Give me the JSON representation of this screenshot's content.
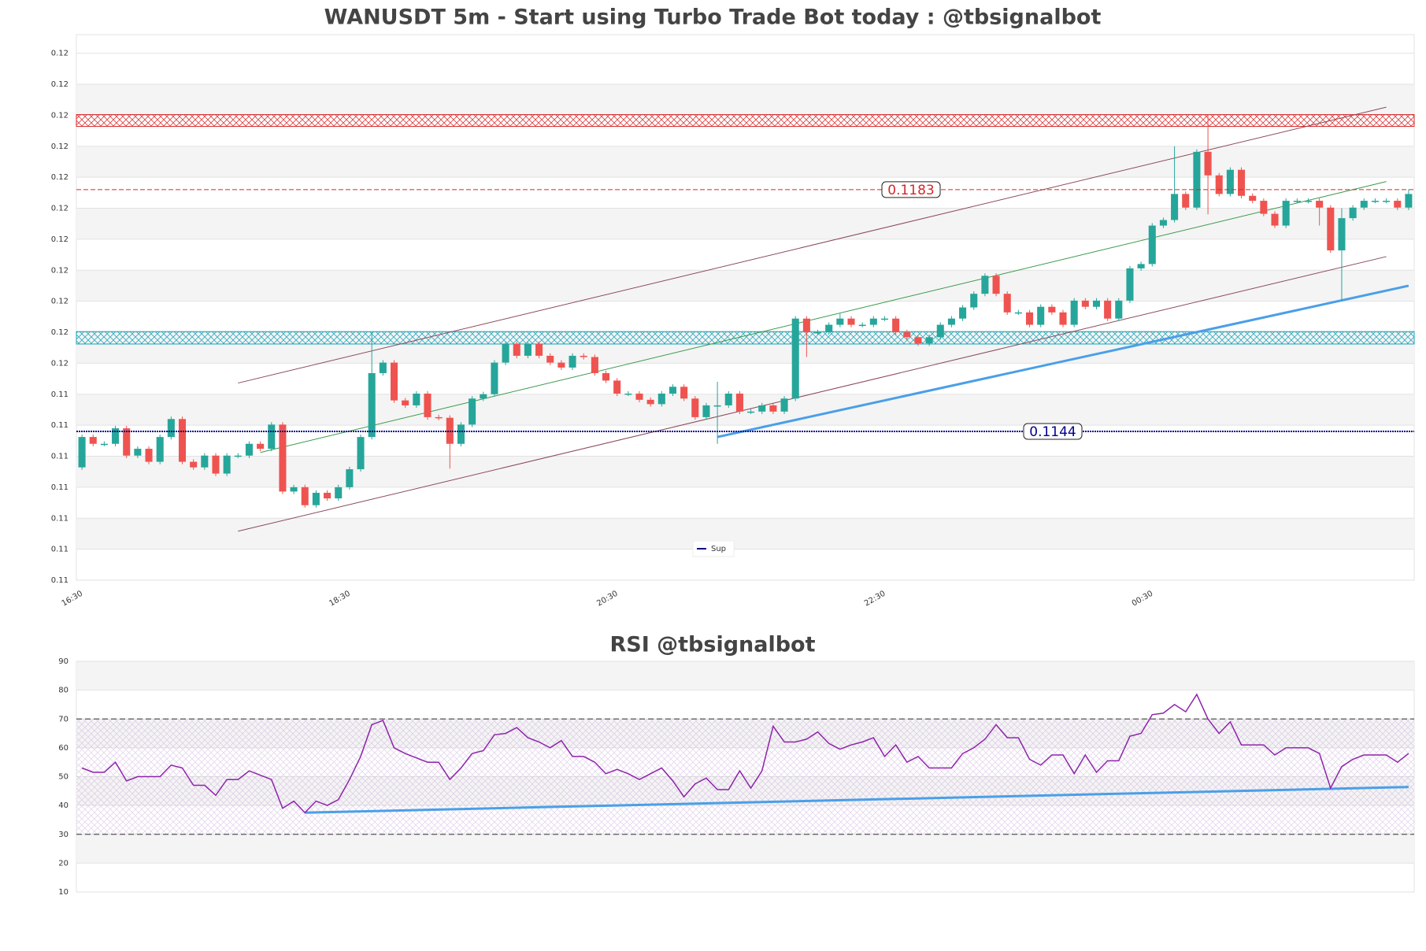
{
  "chart_data": [
    {
      "type": "candlestick",
      "title": "WANUSDT 5m - Start using Turbo Trade Bot today : @tbsignalbot",
      "categories": [
        "16:30",
        null,
        null,
        null,
        null,
        null,
        null,
        null,
        null,
        null,
        null,
        null,
        null,
        null,
        null,
        null,
        null,
        null,
        null,
        null,
        null,
        null,
        null,
        null,
        "18:30",
        null,
        null,
        null,
        null,
        null,
        null,
        null,
        null,
        null,
        null,
        null,
        null,
        null,
        null,
        null,
        null,
        null,
        null,
        null,
        null,
        null,
        null,
        null,
        "20:30",
        null,
        null,
        null,
        null,
        null,
        null,
        null,
        null,
        null,
        null,
        null,
        null,
        null,
        null,
        null,
        null,
        null,
        null,
        null,
        null,
        null,
        null,
        null,
        "22:30",
        null,
        null,
        null,
        null,
        null,
        null,
        null,
        null,
        null,
        null,
        null,
        null,
        null,
        null,
        null,
        null,
        null,
        null,
        null,
        null,
        null,
        null,
        null,
        "00:30",
        null,
        null,
        null,
        null,
        null,
        null,
        null,
        null,
        null,
        null,
        null,
        null,
        null,
        null,
        null,
        null,
        null,
        null,
        null,
        null,
        null,
        null,
        null
      ],
      "open": [
        0.11382,
        0.11431,
        0.1142,
        0.1142,
        0.11445,
        0.11401,
        0.11412,
        0.11391,
        0.11431,
        0.1146,
        0.11391,
        0.11382,
        0.11401,
        0.11372,
        0.11401,
        0.11401,
        0.1142,
        0.11412,
        0.11451,
        0.11343,
        0.1135,
        0.11321,
        0.11341,
        0.11332,
        0.1135,
        0.11379,
        0.11431,
        0.11534,
        0.11551,
        0.1149,
        0.11482,
        0.11501,
        0.11463,
        0.11462,
        0.1142,
        0.11451,
        0.11493,
        0.115,
        0.11551,
        0.11581,
        0.11562,
        0.11581,
        0.11562,
        0.11551,
        0.11543,
        0.11562,
        0.1156,
        0.11534,
        0.11522,
        0.11501,
        0.11501,
        0.11491,
        0.11484,
        0.11501,
        0.11512,
        0.11493,
        0.11463,
        0.11482,
        0.11482,
        0.11501,
        0.11472,
        0.11472,
        0.11482,
        0.11472,
        0.11493,
        0.11622,
        0.116,
        0.116,
        0.11612,
        0.11622,
        0.11612,
        0.11612,
        0.11622,
        0.11622,
        0.116,
        0.11592,
        0.11582,
        0.11592,
        0.11612,
        0.11622,
        0.1164,
        0.11662,
        0.11691,
        0.11662,
        0.11632,
        0.11632,
        0.11612,
        0.11641,
        0.11632,
        0.11612,
        0.11651,
        0.11641,
        0.11651,
        0.11622,
        0.11651,
        0.11703,
        0.1171,
        0.11772,
        0.11781,
        0.11823,
        0.11801,
        0.11891,
        0.11853,
        0.11823,
        0.11862,
        0.1182,
        0.11812,
        0.11791,
        0.11772,
        0.11812,
        0.11812,
        0.11812,
        0.11801,
        0.11732,
        0.11784,
        0.11801,
        0.11812,
        0.11812,
        0.11812,
        0.11801
      ],
      "high": [
        0.11435,
        0.11435,
        0.11424,
        0.11449,
        0.11449,
        0.11416,
        0.11416,
        0.11435,
        0.11464,
        0.11464,
        0.11395,
        0.11405,
        0.11405,
        0.11405,
        0.11405,
        0.11424,
        0.11424,
        0.11455,
        0.11455,
        0.11354,
        0.11354,
        0.11345,
        0.11345,
        0.11354,
        0.11383,
        0.11435,
        0.116,
        0.11555,
        0.11555,
        0.11494,
        0.11505,
        0.11505,
        0.11467,
        0.11466,
        0.11455,
        0.11497,
        0.11504,
        0.11555,
        0.11585,
        0.11585,
        0.11585,
        0.11585,
        0.11566,
        0.11555,
        0.11566,
        0.11566,
        0.11564,
        0.11538,
        0.11526,
        0.11505,
        0.11505,
        0.11495,
        0.11505,
        0.11516,
        0.11516,
        0.11497,
        0.11486,
        0.1152,
        0.11505,
        0.11505,
        0.11476,
        0.11486,
        0.11486,
        0.11497,
        0.11626,
        0.11626,
        0.11604,
        0.11616,
        0.1163,
        0.11626,
        0.11616,
        0.11626,
        0.11626,
        0.11626,
        0.11604,
        0.11596,
        0.11596,
        0.11616,
        0.11626,
        0.11644,
        0.11666,
        0.11695,
        0.11695,
        0.11666,
        0.11636,
        0.11636,
        0.11645,
        0.11645,
        0.11636,
        0.11655,
        0.11655,
        0.11655,
        0.11655,
        0.11655,
        0.11707,
        0.11714,
        0.11776,
        0.11785,
        0.119,
        0.11827,
        0.11895,
        0.1195,
        0.11857,
        0.11866,
        0.11866,
        0.11824,
        0.11816,
        0.11795,
        0.11816,
        0.11816,
        0.11816,
        0.11816,
        0.11805,
        0.118,
        0.11805,
        0.11816,
        0.11816,
        0.11816,
        0.11816,
        0.1183
      ],
      "low": [
        0.11378,
        0.11416,
        0.11416,
        0.11416,
        0.11397,
        0.11397,
        0.11387,
        0.11387,
        0.11427,
        0.11387,
        0.11378,
        0.11378,
        0.11368,
        0.11368,
        0.11397,
        0.11397,
        0.11408,
        0.11408,
        0.11339,
        0.11339,
        0.11317,
        0.11317,
        0.11328,
        0.11328,
        0.11346,
        0.11375,
        0.11427,
        0.1153,
        0.11486,
        0.11478,
        0.11478,
        0.11459,
        0.11458,
        0.1138,
        0.11416,
        0.11447,
        0.11489,
        0.11496,
        0.11547,
        0.11558,
        0.11558,
        0.11558,
        0.11547,
        0.11539,
        0.11539,
        0.11556,
        0.1153,
        0.11518,
        0.11497,
        0.11497,
        0.11487,
        0.1148,
        0.1148,
        0.11497,
        0.11489,
        0.11459,
        0.11459,
        0.1142,
        0.11478,
        0.11468,
        0.11468,
        0.11468,
        0.11468,
        0.11468,
        0.11489,
        0.1156,
        0.11596,
        0.11596,
        0.11608,
        0.11608,
        0.11608,
        0.11608,
        0.11618,
        0.11596,
        0.11588,
        0.11578,
        0.11578,
        0.11588,
        0.11608,
        0.11618,
        0.11636,
        0.11658,
        0.11658,
        0.11628,
        0.11628,
        0.11608,
        0.11608,
        0.11628,
        0.11608,
        0.11608,
        0.11637,
        0.11637,
        0.11618,
        0.11618,
        0.11647,
        0.11699,
        0.11706,
        0.11768,
        0.11777,
        0.11797,
        0.11797,
        0.1179,
        0.11819,
        0.11819,
        0.11816,
        0.11808,
        0.11787,
        0.11768,
        0.11768,
        0.11808,
        0.11808,
        0.11772,
        0.11728,
        0.1165,
        0.1178,
        0.11797,
        0.11808,
        0.11808,
        0.11797,
        0.11797
      ],
      "close": [
        0.11431,
        0.1142,
        0.1142,
        0.11445,
        0.11401,
        0.11412,
        0.11391,
        0.11431,
        0.1146,
        0.11391,
        0.11382,
        0.11401,
        0.11372,
        0.11401,
        0.11401,
        0.1142,
        0.11412,
        0.11451,
        0.11343,
        0.1135,
        0.11321,
        0.11341,
        0.11332,
        0.1135,
        0.11379,
        0.11431,
        0.11534,
        0.11551,
        0.1149,
        0.11482,
        0.11501,
        0.11463,
        0.11462,
        0.1142,
        0.11451,
        0.11493,
        0.115,
        0.11551,
        0.11581,
        0.11562,
        0.11581,
        0.11562,
        0.11551,
        0.11543,
        0.11562,
        0.1156,
        0.11534,
        0.11522,
        0.11501,
        0.11501,
        0.11491,
        0.11484,
        0.11501,
        0.11512,
        0.11493,
        0.11463,
        0.11482,
        0.11482,
        0.11501,
        0.11472,
        0.11472,
        0.11482,
        0.11472,
        0.11493,
        0.11622,
        0.116,
        0.116,
        0.11612,
        0.11622,
        0.11612,
        0.11612,
        0.11622,
        0.11622,
        0.116,
        0.11592,
        0.11582,
        0.11592,
        0.11612,
        0.11622,
        0.1164,
        0.11662,
        0.11691,
        0.11662,
        0.11632,
        0.11632,
        0.11612,
        0.11641,
        0.11632,
        0.11612,
        0.11651,
        0.11641,
        0.11651,
        0.11622,
        0.11651,
        0.11703,
        0.1171,
        0.11772,
        0.11781,
        0.11823,
        0.11801,
        0.11891,
        0.11853,
        0.11823,
        0.11862,
        0.1182,
        0.11812,
        0.11791,
        0.11772,
        0.11812,
        0.11812,
        0.11812,
        0.11801,
        0.11732,
        0.11784,
        0.11801,
        0.11812,
        0.11812,
        0.11812,
        0.11801,
        0.11823
      ],
      "up_color": "#26a69a",
      "down_color": "#ef5350",
      "ylim": [
        0.112,
        0.1208
      ],
      "yticks": [
        {
          "value": 0.112,
          "label": "0.11"
        },
        {
          "value": 0.1125,
          "label": "0.11"
        },
        {
          "value": 0.113,
          "label": "0.11"
        },
        {
          "value": 0.1135,
          "label": "0.11"
        },
        {
          "value": 0.114,
          "label": "0.11"
        },
        {
          "value": 0.1145,
          "label": "0.11"
        },
        {
          "value": 0.115,
          "label": "0.11"
        },
        {
          "value": 0.1155,
          "label": "0.12"
        },
        {
          "value": 0.116,
          "label": "0.12"
        },
        {
          "value": 0.1165,
          "label": "0.12"
        },
        {
          "value": 0.117,
          "label": "0.12"
        },
        {
          "value": 0.1175,
          "label": "0.12"
        },
        {
          "value": 0.118,
          "label": "0.12"
        },
        {
          "value": 0.1185,
          "label": "0.12"
        },
        {
          "value": 0.119,
          "label": "0.12"
        },
        {
          "value": 0.1195,
          "label": "0.12"
        },
        {
          "value": 0.12,
          "label": "0.12"
        },
        {
          "value": 0.1205,
          "label": "0.12"
        }
      ],
      "grid": true,
      "zones": [
        {
          "color": "#d62728",
          "range": [
            0.11932,
            0.11951
          ]
        },
        {
          "color": "#17a2b8",
          "range": [
            0.11581,
            0.11601
          ]
        }
      ],
      "hlines": [
        {
          "value": 0.1183,
          "color": "#d62728",
          "style": "dashed"
        },
        {
          "name": "Sup",
          "value": 0.1144,
          "color": "#00008b",
          "style": "solid"
        }
      ],
      "lines": [
        {
          "color": "#8b4a5a",
          "x": [
            14,
            117
          ],
          "values": [
            0.11518,
            0.11963
          ]
        },
        {
          "color": "#8b4a5a",
          "x": [
            14,
            117
          ],
          "values": [
            0.11279,
            0.11722
          ]
        },
        {
          "color": "#3a9a4a",
          "x": [
            16,
            117
          ],
          "values": [
            0.11406,
            0.11843
          ]
        },
        {
          "color": "#4a9fe8",
          "x": [
            57,
            119
          ],
          "values": [
            0.11431,
            0.11675
          ],
          "width": 3
        }
      ],
      "legend": "bottom center"
    },
    {
      "type": "line",
      "title": "RSI @tbsignalbot",
      "color": "#8e24aa",
      "values": [
        53,
        51.5,
        51.5,
        55,
        48.5,
        50,
        50,
        50,
        54,
        53,
        47,
        47,
        43.5,
        49,
        49,
        52,
        50.5,
        49,
        39,
        41.5,
        37.5,
        41.5,
        40,
        42,
        49,
        57,
        68,
        69.5,
        60,
        58,
        56.5,
        55,
        55,
        49,
        53,
        58,
        59,
        64.5,
        65,
        67,
        63.5,
        62,
        60,
        62.5,
        57,
        57,
        55,
        51,
        52.5,
        51,
        49,
        51,
        53,
        48.5,
        43,
        47.5,
        49.5,
        45.5,
        45.5,
        52,
        46,
        52,
        67.5,
        62,
        62,
        63,
        65.5,
        61.5,
        59.5,
        61,
        62,
        63.5,
        57,
        61,
        55,
        57,
        53,
        53,
        53,
        58,
        60,
        63,
        68,
        63.5,
        63.5,
        56,
        54,
        57.5,
        57.5,
        51,
        57.5,
        51.5,
        55.5,
        55.5,
        64,
        65,
        71.5,
        72,
        75,
        72.5,
        78.5,
        70,
        65,
        69,
        61,
        61,
        61,
        57.5,
        60,
        60,
        60,
        58,
        46,
        53.5,
        56,
        57.5,
        57.5,
        57.5,
        55,
        58
      ],
      "ylim": [
        10,
        90
      ],
      "yticks": [
        10,
        20,
        30,
        40,
        50,
        60,
        70,
        80,
        90
      ],
      "grid": true,
      "levels": [
        30,
        70
      ],
      "lines": [
        {
          "color": "#4a9fe8",
          "x": [
            20,
            119
          ],
          "values": [
            37.5,
            46.4
          ],
          "width": 3
        }
      ]
    }
  ]
}
